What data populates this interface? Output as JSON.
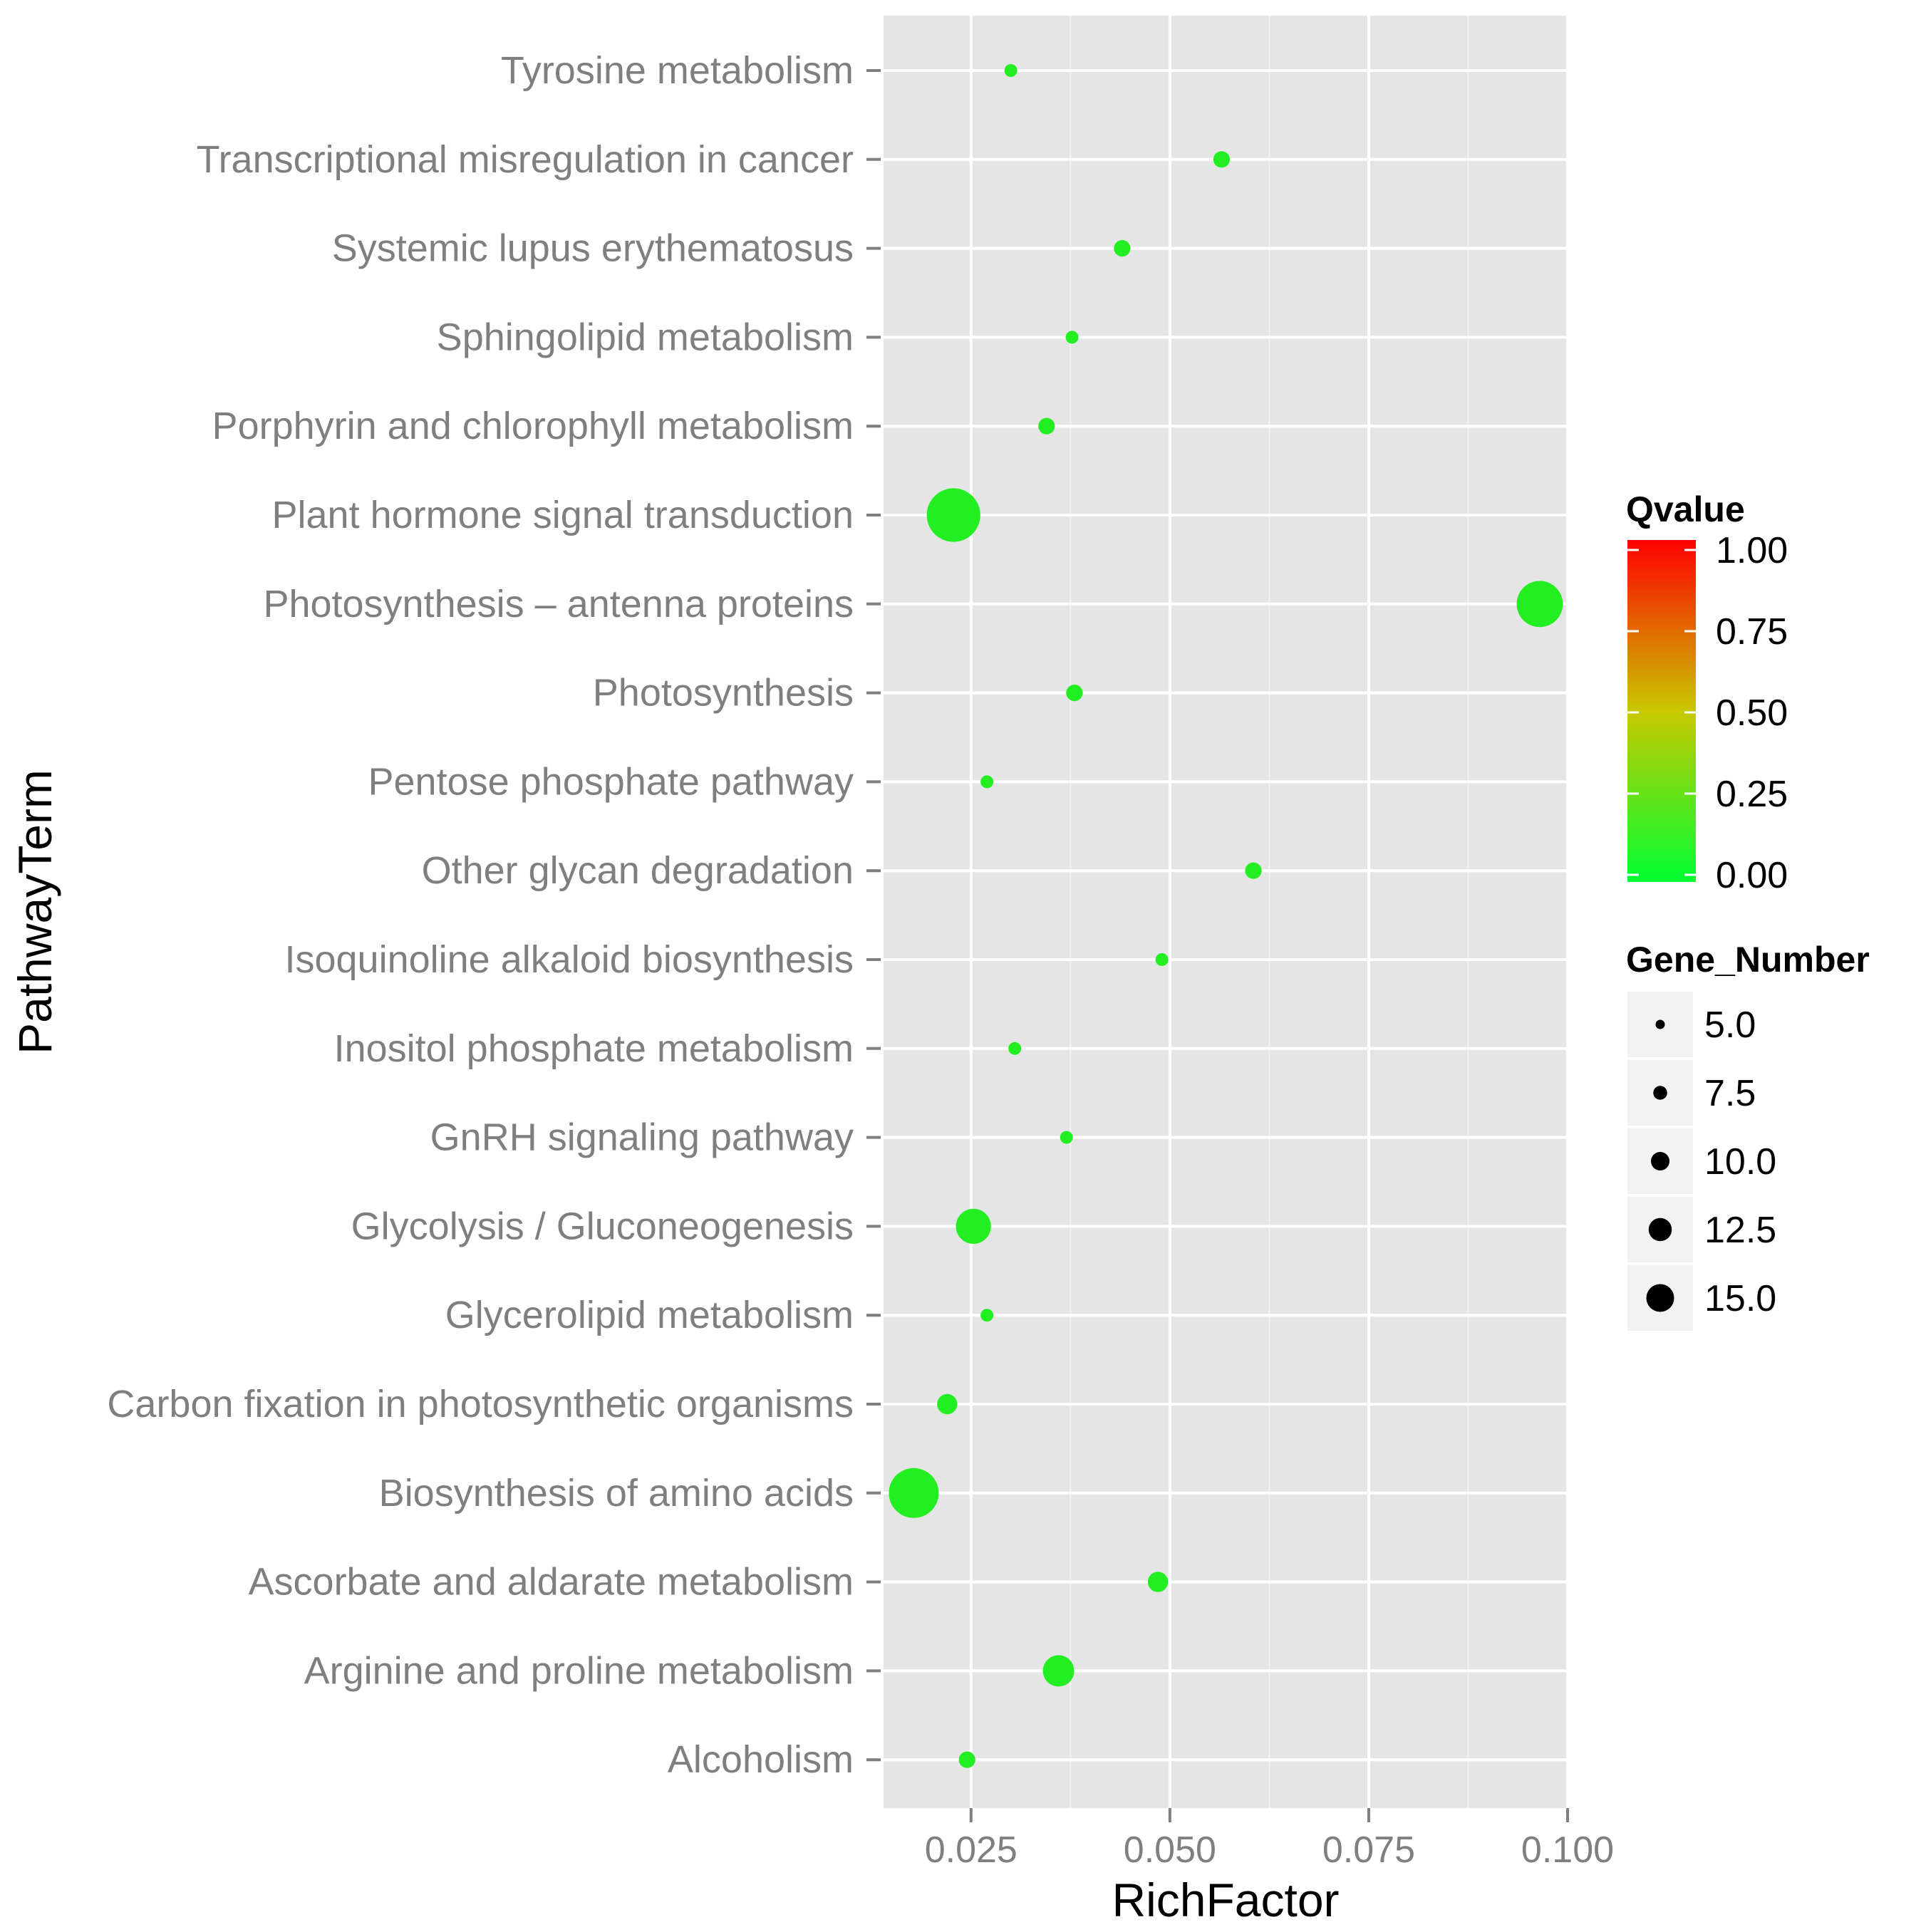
{
  "chart_data": {
    "type": "scatter",
    "title": "",
    "xlabel": "RichFactor",
    "ylabel": "PathwayTerm",
    "xlim": [
      0.014,
      0.1
    ],
    "x_ticks": [
      {
        "value": 0.025,
        "label": "0.025"
      },
      {
        "value": 0.05,
        "label": "0.050"
      },
      {
        "value": 0.075,
        "label": "0.075"
      },
      {
        "value": 0.1,
        "label": "0.100"
      }
    ],
    "grid": true,
    "points": [
      {
        "term": "Tyrosine metabolism",
        "rich_factor": 0.03,
        "gene_number": 5,
        "qvalue": 0.0
      },
      {
        "term": "Transcriptional misregulation in cancer",
        "rich_factor": 0.0565,
        "gene_number": 6,
        "qvalue": 0.0
      },
      {
        "term": "Systemic lupus erythematosus",
        "rich_factor": 0.044,
        "gene_number": 6,
        "qvalue": 0.0
      },
      {
        "term": "Sphingolipid metabolism",
        "rich_factor": 0.0377,
        "gene_number": 5,
        "qvalue": 0.0
      },
      {
        "term": "Porphyrin and chlorophyll metabolism",
        "rich_factor": 0.0345,
        "gene_number": 6,
        "qvalue": 0.0
      },
      {
        "term": "Plant hormone signal transduction",
        "rich_factor": 0.0228,
        "gene_number": 16,
        "qvalue": 0.0
      },
      {
        "term": "Photosynthesis – antenna proteins",
        "rich_factor": 0.0965,
        "gene_number": 14,
        "qvalue": 0.0
      },
      {
        "term": "Photosynthesis",
        "rich_factor": 0.038,
        "gene_number": 6,
        "qvalue": 0.0
      },
      {
        "term": "Pentose phosphate pathway",
        "rich_factor": 0.027,
        "gene_number": 5,
        "qvalue": 0.0
      },
      {
        "term": "Other glycan degradation",
        "rich_factor": 0.0605,
        "gene_number": 6,
        "qvalue": 0.0
      },
      {
        "term": "Isoquinoline alkaloid biosynthesis",
        "rich_factor": 0.049,
        "gene_number": 5,
        "qvalue": 0.0
      },
      {
        "term": "Inositol phosphate metabolism",
        "rich_factor": 0.0305,
        "gene_number": 5,
        "qvalue": 0.0
      },
      {
        "term": "GnRH signaling pathway",
        "rich_factor": 0.037,
        "gene_number": 5,
        "qvalue": 0.0
      },
      {
        "term": "Glycolysis / Gluconeogenesis",
        "rich_factor": 0.0253,
        "gene_number": 11,
        "qvalue": 0.0
      },
      {
        "term": "Glycerolipid metabolism",
        "rich_factor": 0.027,
        "gene_number": 5,
        "qvalue": 0.0
      },
      {
        "term": "Carbon fixation in photosynthetic organisms",
        "rich_factor": 0.022,
        "gene_number": 7,
        "qvalue": 0.0
      },
      {
        "term": "Biosynthesis of amino acids",
        "rich_factor": 0.0178,
        "gene_number": 15,
        "qvalue": 0.0
      },
      {
        "term": "Ascorbate and aldarate metabolism",
        "rich_factor": 0.0485,
        "gene_number": 7,
        "qvalue": 0.0
      },
      {
        "term": "Arginine and proline metabolism",
        "rich_factor": 0.036,
        "gene_number": 10,
        "qvalue": 0.0
      },
      {
        "term": "Alcoholism",
        "rich_factor": 0.0245,
        "gene_number": 6,
        "qvalue": 0.0
      }
    ],
    "legend_qvalue": {
      "title": "Qvalue",
      "range": [
        0.0,
        1.0
      ],
      "ticks": [
        "1.00",
        "0.75",
        "0.50",
        "0.25",
        "0.00"
      ],
      "colors": {
        "low": "#00ff33",
        "mid": "#c8c800",
        "high": "#ff0000"
      }
    },
    "legend_gene_number": {
      "title": "Gene_Number",
      "values": [
        5.0,
        7.5,
        10.0,
        12.5,
        15.0
      ],
      "labels": [
        "5.0",
        "7.5",
        "10.0",
        "12.5",
        "15.0"
      ]
    },
    "legend_placement": "right"
  },
  "colors": {
    "panel_bg": "#e5e5e5",
    "grid_major": "#ffffff",
    "grid_minor": "#f2f2f2",
    "point_fill": "#22ee22",
    "label_text": "#7f7f7f"
  }
}
